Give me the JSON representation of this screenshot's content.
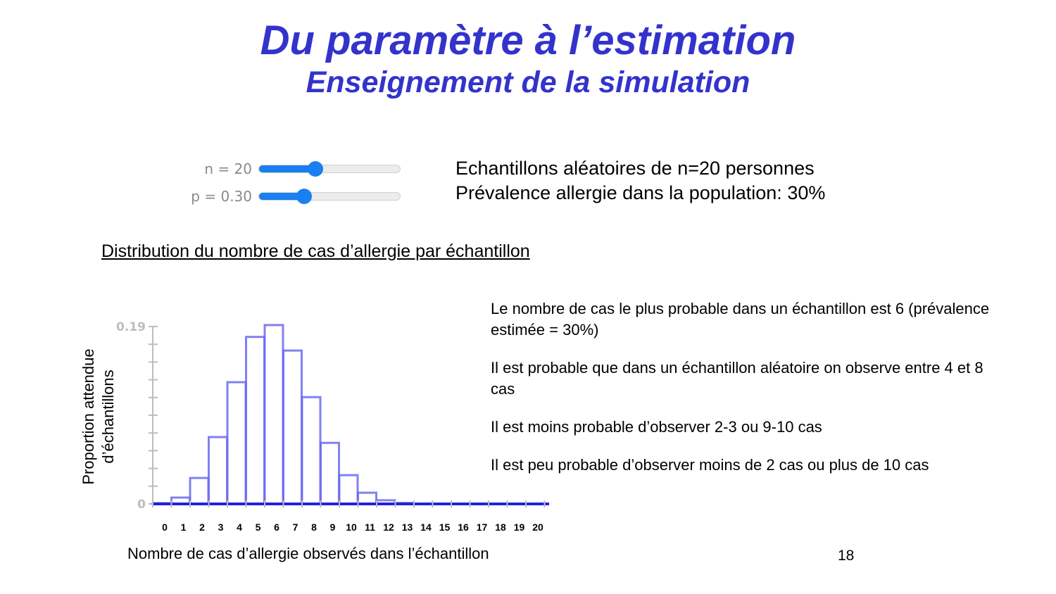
{
  "slide": {
    "title": "Du paramètre à l’estimation",
    "subtitle": "Enseignement de la simulation",
    "page_number": "18"
  },
  "sliders": [
    {
      "label": "n = 20",
      "value": 20,
      "min": 0,
      "max": 50
    },
    {
      "label": "p = 0.30",
      "value": 0.3,
      "min": 0,
      "max": 1
    }
  ],
  "settings_text": [
    "Echantillons aléatoires de n=20 personnes",
    "Prévalence allergie dans la population: 30%"
  ],
  "section_heading": "Distribution du nombre de cas d’allergie par échantillon",
  "bullets": [
    "Le nombre de cas le plus probable dans un échantillon est 6 (prévalence estimée = 30%)",
    "Il est probable que dans un échantillon aléatoire on observe entre 4 et 8 cas",
    "Il est moins probable d’observer 2-3 ou 9-10 cas",
    "Il est peu probable d’observer moins de 2 cas ou plus de 10 cas"
  ],
  "colors": {
    "title": "#3333cc",
    "bar_stroke": "#6b6bf0",
    "baseline": "#2222dd",
    "slider": "#1a7ff0",
    "axis_faint": "#bdbdbd"
  },
  "chart_data": {
    "type": "bar",
    "categories": [
      "0",
      "1",
      "2",
      "3",
      "4",
      "5",
      "6",
      "7",
      "8",
      "9",
      "10",
      "11",
      "12",
      "13",
      "14",
      "15",
      "16",
      "17",
      "18",
      "19",
      "20"
    ],
    "values": [
      0.0008,
      0.0068,
      0.0278,
      0.0716,
      0.1304,
      0.1789,
      0.1916,
      0.1643,
      0.1144,
      0.0654,
      0.0308,
      0.012,
      0.0039,
      0.001,
      0.0002,
      0,
      0,
      0,
      0,
      0,
      0
    ],
    "ylim": [
      0,
      0.19
    ],
    "y_tick_labels": [
      "0",
      "0.19"
    ],
    "xlabel": "Nombre de cas d’allergie observés dans l’échantillon",
    "ylabel": [
      "Proportion attendue",
      "d’échantillons"
    ],
    "grid": false
  }
}
